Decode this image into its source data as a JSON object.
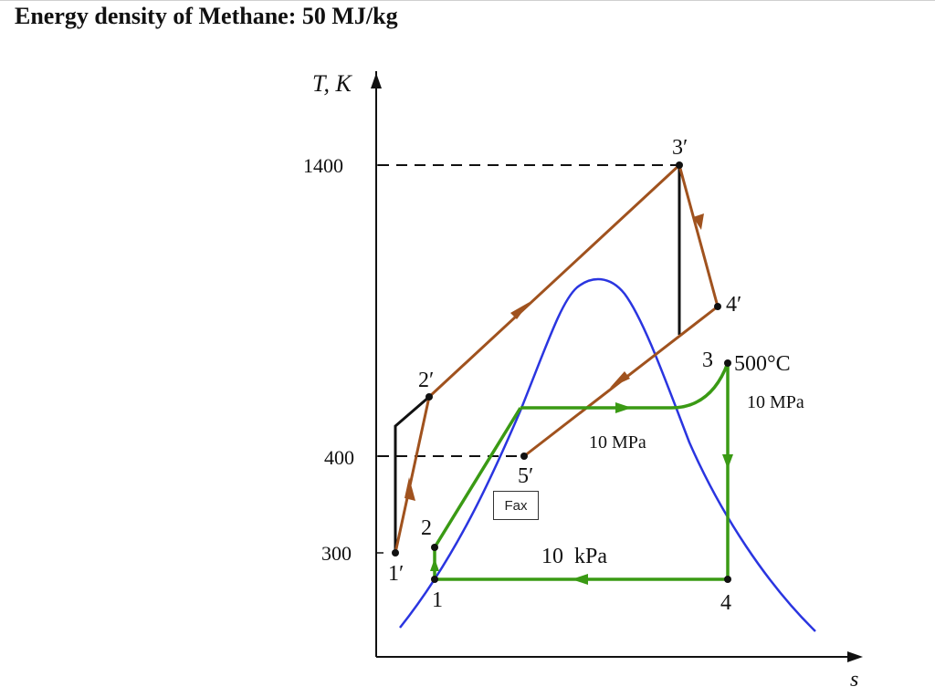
{
  "title": "Energy density of Methane: 50 MJ/kg",
  "axes": {
    "y_label": "T, K",
    "x_label": "s",
    "y_ticks": [
      "1400",
      "400",
      "300"
    ]
  },
  "points": {
    "p1": "1",
    "p1p": "1′",
    "p2": "2",
    "p2p": "2′",
    "p3": "3",
    "p3p": "3′",
    "p4": "4",
    "p4p": "4′",
    "p5p": "5′"
  },
  "annotations": {
    "temp_500": "500°C",
    "pressure_high_right": "10 MPa",
    "pressure_high_center": "10 MPa",
    "pressure_low": "10  kPa"
  },
  "tooltip": {
    "label": "Fax"
  },
  "colors": {
    "gas_cycle": "#a0521e",
    "steam_cycle": "#3a9a14",
    "saturation_dome": "#2a35e0",
    "axes": "#111111"
  }
}
